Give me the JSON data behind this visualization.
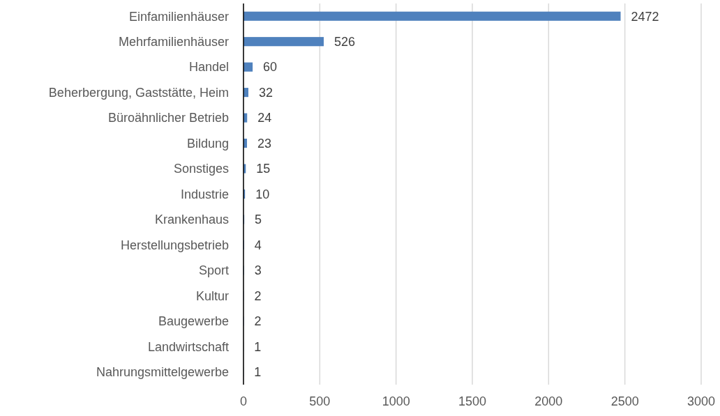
{
  "chart_data": {
    "type": "bar",
    "orientation": "horizontal",
    "categories": [
      "Einfamilienhäuser",
      "Mehrfamilienhäuser",
      "Handel",
      "Beherbergung, Gaststätte, Heim",
      "Büroähnlicher Betrieb",
      "Bildung",
      "Sonstiges",
      "Industrie",
      "Krankenhaus",
      "Herstellungsbetrieb",
      "Sport",
      "Kultur",
      "Baugewerbe",
      "Landwirtschaft",
      "Nahrungsmittelgewerbe"
    ],
    "values": [
      2472,
      526,
      60,
      32,
      24,
      23,
      15,
      10,
      5,
      4,
      3,
      2,
      2,
      1,
      1
    ],
    "color": "#4f81bd",
    "xlim": [
      0,
      3000
    ],
    "xticks": [
      0,
      500,
      1000,
      1500,
      2000,
      2500,
      3000
    ],
    "grid": "x",
    "data_labels": true
  }
}
